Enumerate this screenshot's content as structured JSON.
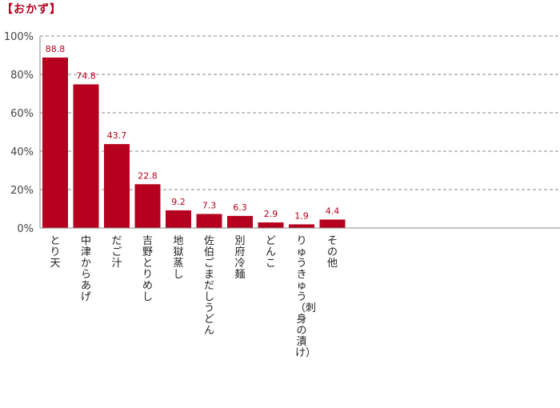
{
  "chart_data": {
    "type": "bar",
    "title": "【おかず】",
    "categories": [
      "とり天",
      "中津からあげ",
      "だご汁",
      "吉野とりめし",
      "地獄蒸し",
      "佐伯ごまだしうどん",
      "別府冷麺",
      "どんこ",
      "りゅうきゅう（刺身の漬け）",
      "その他"
    ],
    "values": [
      88.8,
      74.8,
      43.7,
      22.8,
      9.2,
      7.3,
      6.3,
      2.9,
      1.9,
      4.4
    ],
    "ylim": [
      0,
      100
    ],
    "yticks": [
      "0%",
      "20%",
      "40%",
      "60%",
      "80%",
      "100%"
    ],
    "ytick_values": [
      0,
      20,
      40,
      60,
      80,
      100
    ],
    "grid": "horizontal-dashed",
    "xlabel": "",
    "ylabel": "",
    "colors": {
      "bar": "#b5001f",
      "label": "#b5001f",
      "grid": "#888888",
      "axis": "#888888"
    }
  }
}
